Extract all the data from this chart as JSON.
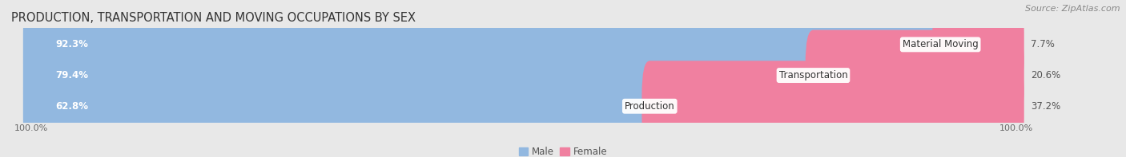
{
  "title": "PRODUCTION, TRANSPORTATION AND MOVING OCCUPATIONS BY SEX",
  "source_text": "Source: ZipAtlas.com",
  "categories": [
    "Material Moving",
    "Transportation",
    "Production"
  ],
  "male_pct": [
    92.3,
    79.4,
    62.8
  ],
  "female_pct": [
    7.7,
    20.6,
    37.2
  ],
  "male_color": "#92b8e0",
  "female_color": "#f080a0",
  "bar_height": 0.52,
  "bg_color": "#e8e8e8",
  "row_bg_color": "#f2f2f2",
  "title_fontsize": 10.5,
  "source_fontsize": 8,
  "label_fontsize": 8.5,
  "pct_fontsize": 8.5,
  "axis_label_fontsize": 8,
  "legend_fontsize": 8.5,
  "xlim": [
    0,
    100
  ]
}
